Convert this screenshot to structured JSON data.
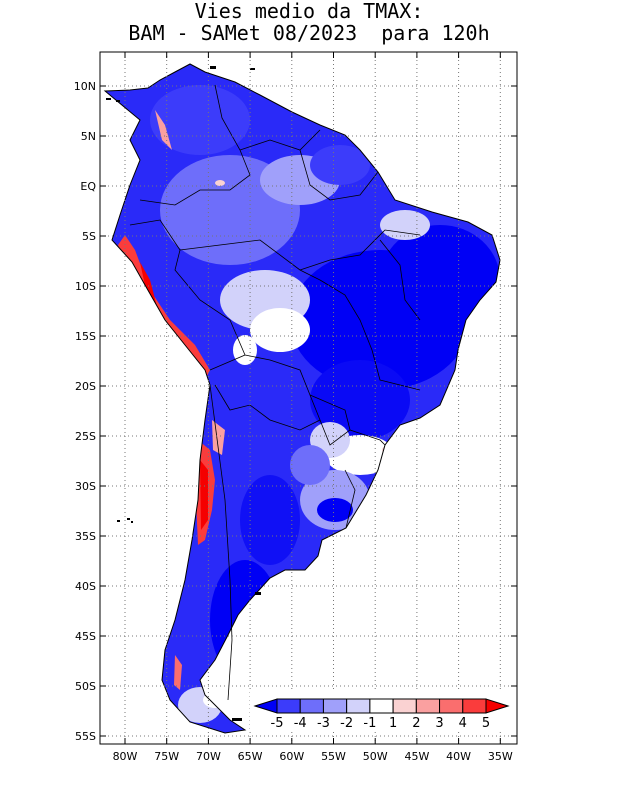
{
  "title": {
    "line1": "Vies medio da TMAX:",
    "line2": "BAM - SAMet 08/2023  para 120h"
  },
  "map": {
    "region": "South America",
    "lon_range": [
      -84,
      -34
    ],
    "lat_range": [
      -56,
      13
    ],
    "grid": true,
    "lat_ticks": [
      "10N",
      "5N",
      "EQ",
      "5S",
      "10S",
      "15S",
      "20S",
      "25S",
      "30S",
      "35S",
      "40S",
      "45S",
      "50S",
      "55S"
    ],
    "lon_ticks": [
      "80W",
      "75W",
      "70W",
      "65W",
      "60W",
      "55W",
      "50W",
      "45W",
      "40W",
      "35W"
    ]
  },
  "colorbar": {
    "labels": [
      "-5",
      "-4",
      "-3",
      "-2",
      "-1",
      "1",
      "2",
      "3",
      "4",
      "5"
    ],
    "colors": [
      "#0000f5",
      "#3c3cfa",
      "#6e6efa",
      "#a0a0fa",
      "#d2d2fa",
      "#ffffff",
      "#fad2d2",
      "#faa0a0",
      "#fa6e6e",
      "#fa3c3c",
      "#f50000"
    ]
  }
}
